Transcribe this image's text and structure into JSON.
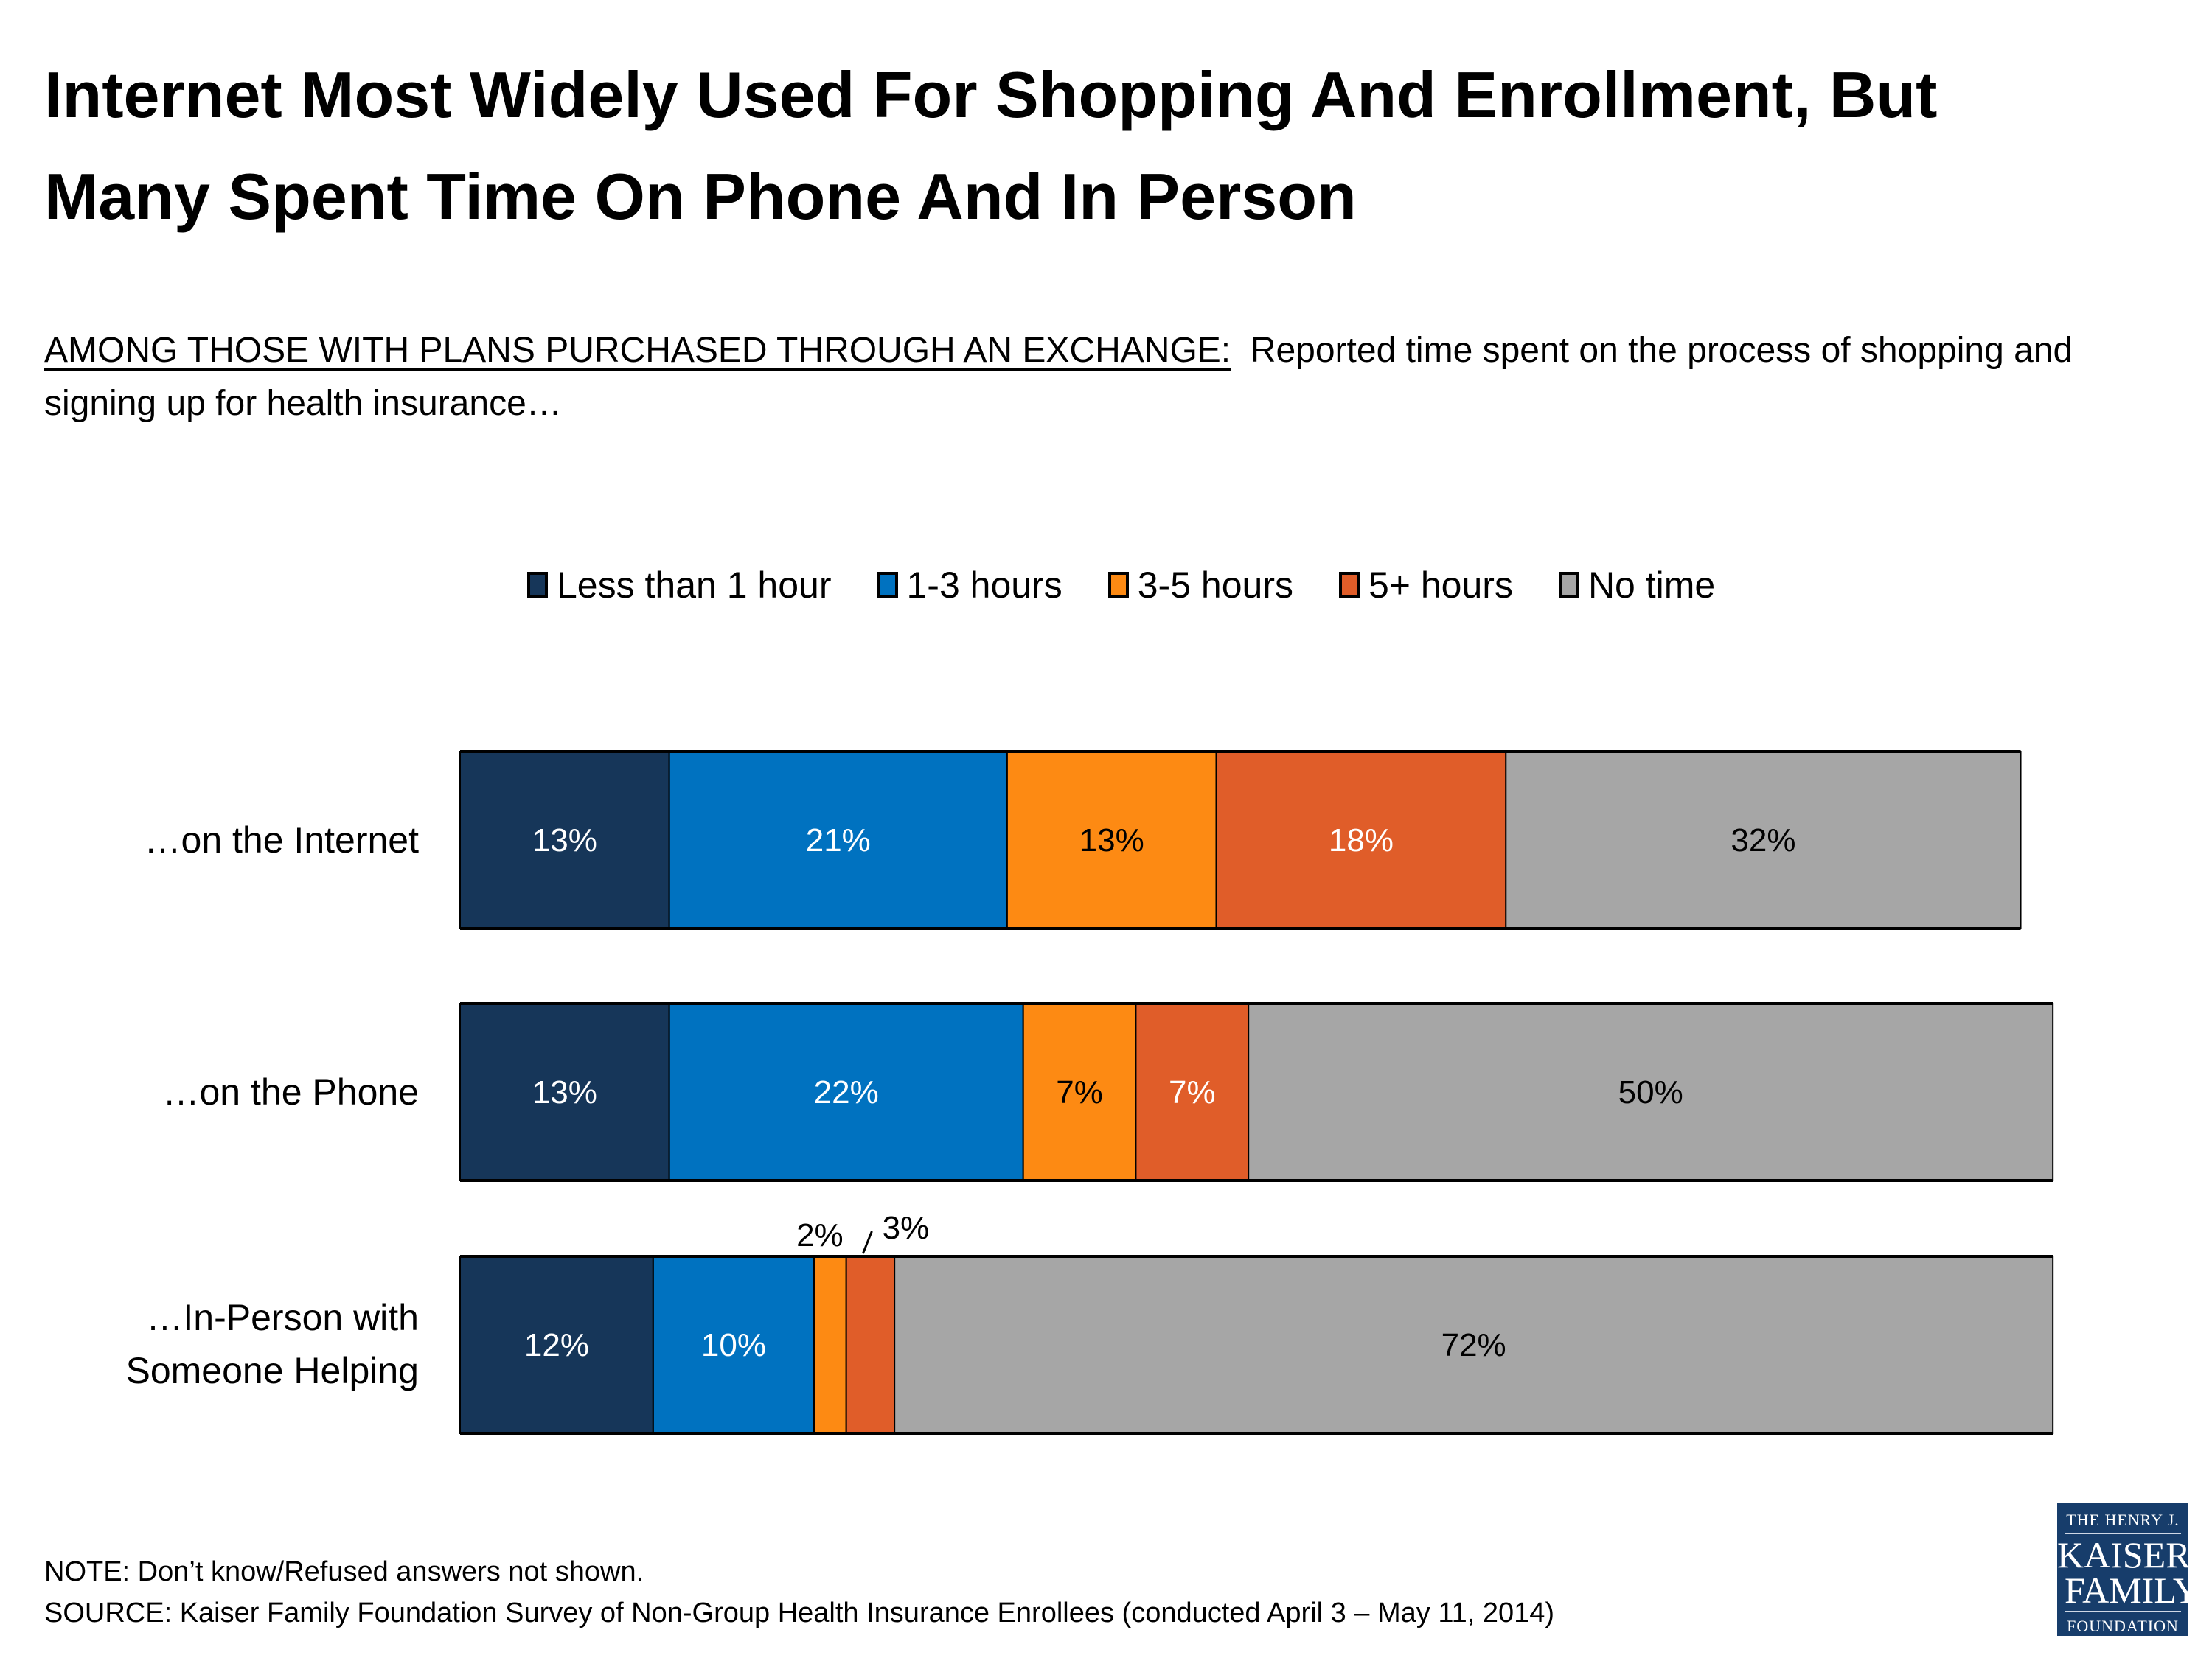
{
  "header": {
    "title_line1": "Internet Most Widely Used For Shopping And Enrollment, But",
    "title_line2": "Many Spent Time On Phone And In Person",
    "subtitle_lead": "AMONG THOSE WITH PLANS PURCHASED THROUGH AN EXCHANGE:",
    "subtitle_rest": "  Reported time spent on the process of shopping and signing up for health insurance…"
  },
  "chart_data": {
    "type": "bar",
    "orientation": "horizontal",
    "stacked": true,
    "title": "Internet Most Widely Used For Shopping And Enrollment, But Many Spent Time On Phone And In Person",
    "xlabel": "",
    "ylabel": "",
    "xlim": [
      0,
      100
    ],
    "grid": false,
    "legend_position": "top",
    "categories": [
      "…on the Internet",
      "…on the Phone",
      "…In-Person with Someone Helping"
    ],
    "category_lines": [
      [
        "…on the Internet"
      ],
      [
        "…on the Phone"
      ],
      [
        "…In-Person with",
        "Someone Helping"
      ]
    ],
    "series": [
      {
        "name": "Less than 1 hour",
        "color": "#163659",
        "label_color": "#ffffff",
        "values": [
          13,
          13,
          12
        ]
      },
      {
        "name": "1-3 hours",
        "color": "#0072c0",
        "label_color": "#ffffff",
        "values": [
          21,
          22,
          10
        ]
      },
      {
        "name": "3-5 hours",
        "color": "#fd8a13",
        "label_color": "#000000",
        "values": [
          13,
          7,
          2
        ]
      },
      {
        "name": "5+ hours",
        "color": "#e05d29",
        "label_color": "#ffffff",
        "values": [
          18,
          7,
          3
        ]
      },
      {
        "name": "No time",
        "color": "#a6a6a6",
        "label_color": "#000000",
        "values": [
          32,
          50,
          72
        ]
      }
    ],
    "unit": "%"
  },
  "footer": {
    "note": "NOTE: Don’t know/Refused answers not shown.",
    "source": "SOURCE: Kaiser Family Foundation Survey of Non-Group Health Insurance Enrollees (conducted April 3 – May 11, 2014)"
  },
  "logo": {
    "line1": "THE HENRY J.",
    "line2": "KAISER",
    "line3": "FAMILY",
    "line4": "FOUNDATION"
  }
}
